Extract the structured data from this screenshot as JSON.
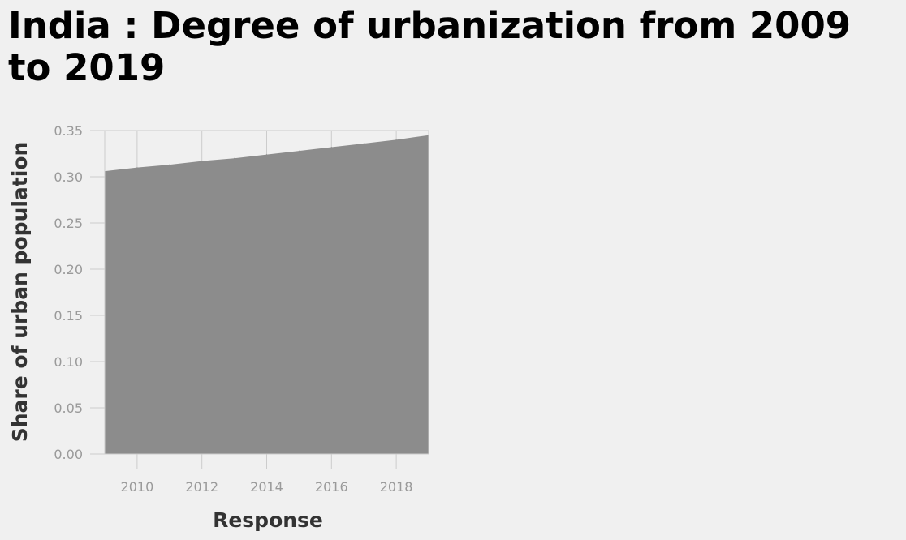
{
  "chart_data": {
    "type": "area",
    "title": "India : Degree of urbanization from 2009 to 2019",
    "xlabel": "Response",
    "ylabel": "Share of urban population",
    "x": [
      2009,
      2010,
      2011,
      2012,
      2013,
      2014,
      2015,
      2016,
      2017,
      2018,
      2019
    ],
    "series": [
      {
        "values": [
          0.306,
          0.31,
          0.313,
          0.317,
          0.32,
          0.324,
          0.328,
          0.332,
          0.336,
          0.34,
          0.345
        ]
      }
    ],
    "xlim": [
      2009,
      2019
    ],
    "ylim": [
      0,
      0.35
    ],
    "xticks": [
      "2010",
      "2012",
      "2014",
      "2016",
      "2018"
    ],
    "yticks": [
      "0.00",
      "0.05",
      "0.10",
      "0.15",
      "0.20",
      "0.25",
      "0.30",
      "0.35"
    ],
    "grid": true,
    "fill_color": "#8c8c8c",
    "grid_color": "#cccccc",
    "background_color": "#f0f0f0"
  }
}
